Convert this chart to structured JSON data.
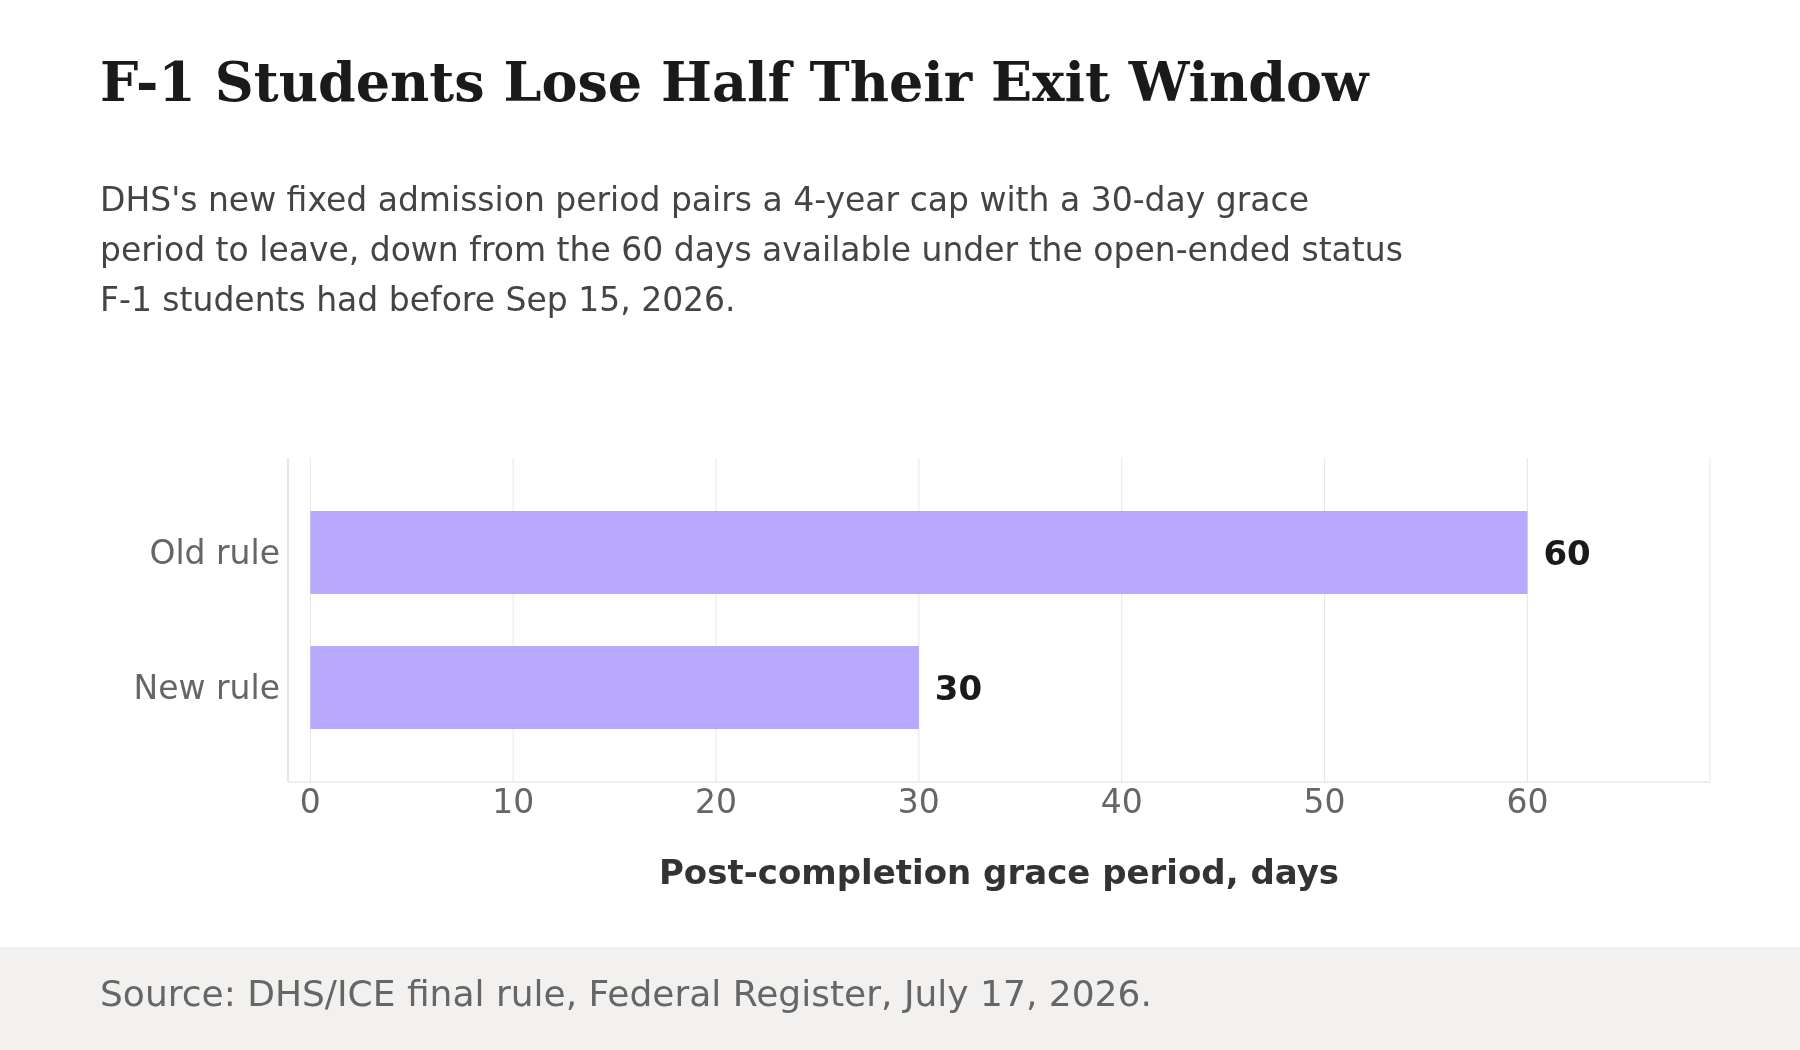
{
  "chart_data": {
    "type": "bar",
    "orientation": "horizontal",
    "title": "F-1 Students Lose Half Their Exit Window",
    "subtitle": "DHS's new fixed admission period pairs a 4-year cap with a 30-day grace period to leave, down from the 60 days available under the open-ended status F-1 students had before Sep 15, 2026.",
    "xlabel": "Post-completion grace period, days",
    "annotations": [
      "Source: DHS/ICE final rule, Federal Register, July 17, 2026."
    ],
    "categories": [
      "Old rule",
      "New rule"
    ],
    "values": [
      60,
      30
    ],
    "color": "#b8a9fe",
    "xlim": [
      -1.1,
      69
    ],
    "xticks": [
      0,
      10,
      20,
      30,
      40,
      50,
      60
    ],
    "grid": "x",
    "data_labels": true
  }
}
